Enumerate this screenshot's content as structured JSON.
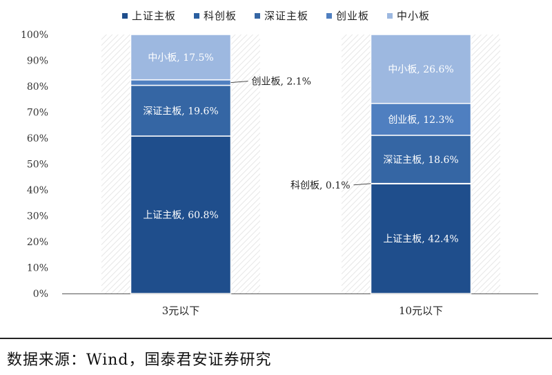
{
  "chart_data": {
    "type": "bar",
    "stacked": true,
    "categories": [
      "3元以下",
      "10元以下"
    ],
    "series": [
      {
        "name": "上证主板",
        "values": [
          60.8,
          42.4
        ],
        "color": "#1f4e8c"
      },
      {
        "name": "科创板",
        "values": [
          0.0,
          0.1
        ],
        "color": "#2a5fa0"
      },
      {
        "name": "深证主板",
        "values": [
          19.6,
          18.6
        ],
        "color": "#3566a4"
      },
      {
        "name": "创业板",
        "values": [
          2.1,
          12.3
        ],
        "color": "#4f7fc0"
      },
      {
        "name": "中小板",
        "values": [
          17.5,
          26.6
        ],
        "color": "#9db8e0"
      }
    ],
    "inside_labels": [
      {
        "cat": 0,
        "series": 0,
        "text": "上证主板, 60.8%"
      },
      {
        "cat": 0,
        "series": 2,
        "text": "深证主板, 19.6%"
      },
      {
        "cat": 0,
        "series": 4,
        "text": "中小板, 17.5%"
      },
      {
        "cat": 1,
        "series": 0,
        "text": "上证主板, 42.4%"
      },
      {
        "cat": 1,
        "series": 2,
        "text": "深证主板, 18.6%"
      },
      {
        "cat": 1,
        "series": 3,
        "text": "创业板, 12.3%"
      },
      {
        "cat": 1,
        "series": 4,
        "text": "中小板, 26.6%"
      }
    ],
    "callouts": [
      {
        "cat": 0,
        "series": 3,
        "text": "创业板, 2.1%",
        "side": "right"
      },
      {
        "cat": 1,
        "series": 1,
        "text": "科创板, 0.1%",
        "side": "left"
      }
    ],
    "yticks": [
      "0%",
      "10%",
      "20%",
      "30%",
      "40%",
      "50%",
      "60%",
      "70%",
      "80%",
      "90%",
      "100%"
    ],
    "ylim": [
      0,
      100
    ],
    "legend_position": "top-center",
    "grid": false
  },
  "footer": {
    "source": "数据来源：Wind，国泰君安证券研究"
  }
}
